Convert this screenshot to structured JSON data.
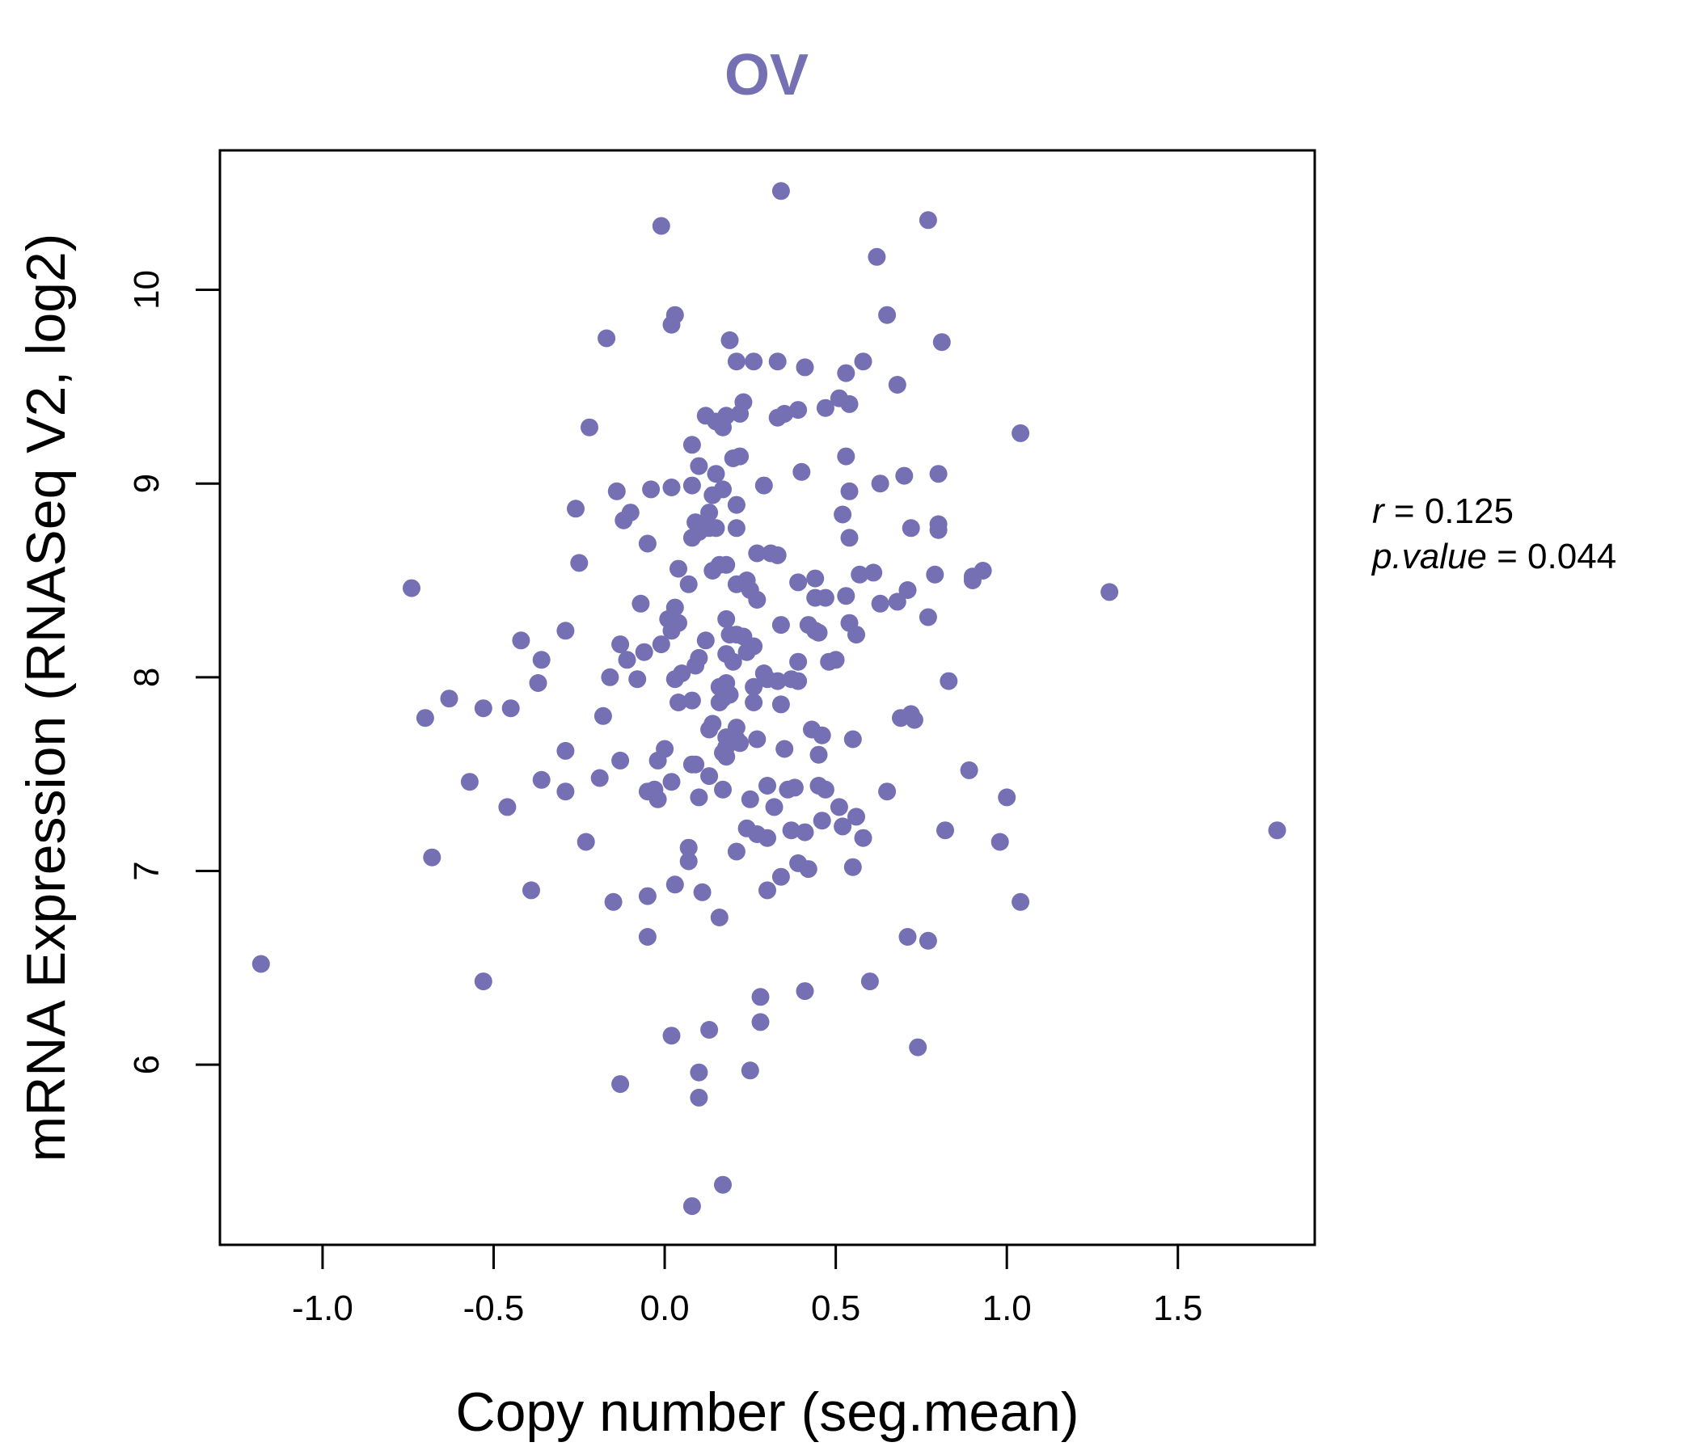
{
  "colors": {
    "accent": "#7570b3",
    "axis": "#000000",
    "background": "#ffffff"
  },
  "chart_data": {
    "type": "scatter",
    "title": "OV",
    "xlabel": "Copy number (seg.mean)",
    "ylabel": "mRNA Expression (RNASeq V2, log2)",
    "xlim": [
      -1.3,
      1.9
    ],
    "ylim": [
      5.07,
      10.72
    ],
    "x_ticks": [
      -1.0,
      -0.5,
      0.0,
      0.5,
      1.0,
      1.5
    ],
    "x_tick_labels": [
      "-1.0",
      "-0.5",
      "0.0",
      "0.5",
      "1.0",
      "1.5"
    ],
    "y_ticks": [
      6,
      7,
      8,
      9,
      10
    ],
    "y_tick_labels": [
      "6",
      "7",
      "8",
      "9",
      "10"
    ],
    "grid": false,
    "stats": {
      "r_symbol": "r",
      "r_eq": " = ",
      "r_value": "0.125",
      "p_symbol": "p.value",
      "p_eq": " = ",
      "p_value": "0.044"
    },
    "points": [
      [
        0.34,
        10.51
      ],
      [
        -0.01,
        10.33
      ],
      [
        0.77,
        10.36
      ],
      [
        0.62,
        10.17
      ],
      [
        0.03,
        9.87
      ],
      [
        0.65,
        9.87
      ],
      [
        0.02,
        9.82
      ],
      [
        -0.17,
        9.75
      ],
      [
        0.19,
        9.74
      ],
      [
        0.81,
        9.73
      ],
      [
        0.21,
        9.63
      ],
      [
        0.26,
        9.63
      ],
      [
        0.33,
        9.63
      ],
      [
        0.41,
        9.6
      ],
      [
        0.58,
        9.63
      ],
      [
        0.53,
        9.57
      ],
      [
        0.68,
        9.51
      ],
      [
        0.23,
        9.42
      ],
      [
        0.51,
        9.44
      ],
      [
        0.54,
        9.41
      ],
      [
        0.12,
        9.35
      ],
      [
        0.15,
        9.32
      ],
      [
        0.18,
        9.35
      ],
      [
        0.22,
        9.36
      ],
      [
        0.33,
        9.34
      ],
      [
        0.35,
        9.36
      ],
      [
        0.39,
        9.38
      ],
      [
        0.47,
        9.39
      ],
      [
        0.17,
        9.29
      ],
      [
        -0.22,
        9.29
      ],
      [
        1.04,
        9.26
      ],
      [
        0.08,
        9.2
      ],
      [
        0.2,
        9.13
      ],
      [
        0.22,
        9.14
      ],
      [
        0.53,
        9.14
      ],
      [
        0.1,
        9.09
      ],
      [
        0.15,
        9.05
      ],
      [
        0.4,
        9.06
      ],
      [
        0.7,
        9.04
      ],
      [
        0.8,
        9.05
      ],
      [
        0.02,
        8.98
      ],
      [
        0.08,
        8.99
      ],
      [
        0.17,
        8.97
      ],
      [
        0.29,
        8.99
      ],
      [
        0.63,
        9.0
      ],
      [
        0.54,
        8.96
      ],
      [
        -0.14,
        8.96
      ],
      [
        -0.04,
        8.97
      ],
      [
        0.14,
        8.94
      ],
      [
        0.21,
        8.89
      ],
      [
        0.13,
        8.85
      ],
      [
        -0.26,
        8.87
      ],
      [
        -0.1,
        8.85
      ],
      [
        -0.12,
        8.81
      ],
      [
        0.09,
        8.8
      ],
      [
        0.11,
        8.78
      ],
      [
        0.13,
        8.77
      ],
      [
        0.15,
        8.77
      ],
      [
        0.21,
        8.77
      ],
      [
        0.52,
        8.84
      ],
      [
        0.72,
        8.77
      ],
      [
        0.8,
        8.79
      ],
      [
        0.8,
        8.76
      ],
      [
        0.08,
        8.72
      ],
      [
        0.1,
        8.75
      ],
      [
        -0.05,
        8.69
      ],
      [
        0.54,
        8.72
      ],
      [
        0.27,
        8.64
      ],
      [
        0.31,
        8.64
      ],
      [
        0.33,
        8.63
      ],
      [
        -0.25,
        8.59
      ],
      [
        0.04,
        8.56
      ],
      [
        0.14,
        8.55
      ],
      [
        0.16,
        8.58
      ],
      [
        0.18,
        8.58
      ],
      [
        0.24,
        8.5
      ],
      [
        0.21,
        8.48
      ],
      [
        0.25,
        8.45
      ],
      [
        0.27,
        8.4
      ],
      [
        0.39,
        8.49
      ],
      [
        0.44,
        8.51
      ],
      [
        0.57,
        8.53
      ],
      [
        0.61,
        8.54
      ],
      [
        0.79,
        8.53
      ],
      [
        0.9,
        8.52
      ],
      [
        0.9,
        8.5
      ],
      [
        0.93,
        8.55
      ],
      [
        0.07,
        8.48
      ],
      [
        0.44,
        8.41
      ],
      [
        0.47,
        8.41
      ],
      [
        0.53,
        8.42
      ],
      [
        0.63,
        8.38
      ],
      [
        0.68,
        8.39
      ],
      [
        0.71,
        8.45
      ],
      [
        1.3,
        8.44
      ],
      [
        -0.74,
        8.46
      ],
      [
        -0.07,
        8.38
      ],
      [
        0.03,
        8.36
      ],
      [
        0.01,
        8.3
      ],
      [
        0.04,
        8.28
      ],
      [
        0.02,
        8.24
      ],
      [
        0.18,
        8.3
      ],
      [
        0.34,
        8.27
      ],
      [
        0.42,
        8.27
      ],
      [
        0.44,
        8.24
      ],
      [
        0.45,
        8.23
      ],
      [
        0.54,
        8.28
      ],
      [
        0.56,
        8.22
      ],
      [
        0.77,
        8.31
      ],
      [
        -0.29,
        8.24
      ],
      [
        -0.42,
        8.19
      ],
      [
        0.19,
        8.22
      ],
      [
        0.21,
        8.22
      ],
      [
        0.23,
        8.21
      ],
      [
        0.12,
        8.19
      ],
      [
        -0.01,
        8.17
      ],
      [
        -0.13,
        8.17
      ],
      [
        0.26,
        8.16
      ],
      [
        0.24,
        8.13
      ],
      [
        -0.06,
        8.13
      ],
      [
        -0.11,
        8.09
      ],
      [
        -0.36,
        8.09
      ],
      [
        0.1,
        8.1
      ],
      [
        0.18,
        8.12
      ],
      [
        0.2,
        8.08
      ],
      [
        0.39,
        8.08
      ],
      [
        0.48,
        8.08
      ],
      [
        0.5,
        8.09
      ],
      [
        0.09,
        8.06
      ],
      [
        0.05,
        8.02
      ],
      [
        0.03,
        7.99
      ],
      [
        0.29,
        8.02
      ],
      [
        0.3,
        7.99
      ],
      [
        0.33,
        7.98
      ],
      [
        0.37,
        7.99
      ],
      [
        0.39,
        7.98
      ],
      [
        0.18,
        7.97
      ],
      [
        0.16,
        7.95
      ],
      [
        -0.08,
        7.99
      ],
      [
        -0.16,
        8.0
      ],
      [
        -0.37,
        7.97
      ],
      [
        0.83,
        7.98
      ],
      [
        0.26,
        7.95
      ],
      [
        0.19,
        7.91
      ],
      [
        0.17,
        7.89
      ],
      [
        0.16,
        7.87
      ],
      [
        0.04,
        7.87
      ],
      [
        0.08,
        7.88
      ],
      [
        0.26,
        7.87
      ],
      [
        0.34,
        7.86
      ],
      [
        -0.63,
        7.89
      ],
      [
        -0.53,
        7.84
      ],
      [
        -0.45,
        7.84
      ],
      [
        -0.7,
        7.79
      ],
      [
        -0.18,
        7.8
      ],
      [
        0.14,
        7.76
      ],
      [
        0.13,
        7.73
      ],
      [
        0.21,
        7.74
      ],
      [
        0.18,
        7.69
      ],
      [
        0.21,
        7.68
      ],
      [
        0.22,
        7.66
      ],
      [
        0.18,
        7.64
      ],
      [
        0.17,
        7.61
      ],
      [
        0.18,
        7.59
      ],
      [
        0.27,
        7.68
      ],
      [
        0.43,
        7.73
      ],
      [
        0.46,
        7.7
      ],
      [
        0.55,
        7.68
      ],
      [
        0.69,
        7.79
      ],
      [
        0.72,
        7.81
      ],
      [
        0.73,
        7.78
      ],
      [
        0.35,
        7.63
      ],
      [
        0.45,
        7.6
      ],
      [
        -0.29,
        7.62
      ],
      [
        -0.13,
        7.57
      ],
      [
        0.0,
        7.63
      ],
      [
        -0.02,
        7.57
      ],
      [
        0.08,
        7.55
      ],
      [
        0.09,
        7.55
      ],
      [
        0.13,
        7.49
      ],
      [
        -0.19,
        7.48
      ],
      [
        -0.36,
        7.47
      ],
      [
        -0.57,
        7.46
      ],
      [
        0.89,
        7.52
      ],
      [
        0.02,
        7.46
      ],
      [
        0.17,
        7.42
      ],
      [
        0.3,
        7.44
      ],
      [
        0.36,
        7.42
      ],
      [
        0.38,
        7.43
      ],
      [
        0.45,
        7.44
      ],
      [
        0.47,
        7.42
      ],
      [
        0.65,
        7.41
      ],
      [
        -0.05,
        7.41
      ],
      [
        -0.03,
        7.42
      ],
      [
        -0.02,
        7.37
      ],
      [
        -0.29,
        7.41
      ],
      [
        0.1,
        7.38
      ],
      [
        0.25,
        7.37
      ],
      [
        0.32,
        7.33
      ],
      [
        0.51,
        7.33
      ],
      [
        0.56,
        7.28
      ],
      [
        0.52,
        7.23
      ],
      [
        0.46,
        7.26
      ],
      [
        1.0,
        7.38
      ],
      [
        -0.46,
        7.33
      ],
      [
        0.24,
        7.22
      ],
      [
        0.27,
        7.19
      ],
      [
        0.3,
        7.17
      ],
      [
        0.37,
        7.21
      ],
      [
        0.41,
        7.2
      ],
      [
        0.58,
        7.17
      ],
      [
        0.82,
        7.21
      ],
      [
        1.79,
        7.21
      ],
      [
        0.98,
        7.15
      ],
      [
        -0.23,
        7.15
      ],
      [
        0.07,
        7.12
      ],
      [
        0.21,
        7.1
      ],
      [
        0.07,
        7.05
      ],
      [
        0.39,
        7.04
      ],
      [
        0.42,
        7.01
      ],
      [
        0.55,
        7.02
      ],
      [
        0.34,
        6.97
      ],
      [
        -0.68,
        7.07
      ],
      [
        0.03,
        6.93
      ],
      [
        0.11,
        6.89
      ],
      [
        0.3,
        6.9
      ],
      [
        -0.39,
        6.9
      ],
      [
        -0.05,
        6.87
      ],
      [
        -0.15,
        6.84
      ],
      [
        1.04,
        6.84
      ],
      [
        0.16,
        6.76
      ],
      [
        -0.05,
        6.66
      ],
      [
        0.71,
        6.66
      ],
      [
        0.77,
        6.64
      ],
      [
        -1.18,
        6.52
      ],
      [
        -0.53,
        6.43
      ],
      [
        0.6,
        6.43
      ],
      [
        0.41,
        6.38
      ],
      [
        0.28,
        6.35
      ],
      [
        0.28,
        6.22
      ],
      [
        0.13,
        6.18
      ],
      [
        0.02,
        6.15
      ],
      [
        0.74,
        6.09
      ],
      [
        0.25,
        5.97
      ],
      [
        0.1,
        5.96
      ],
      [
        -0.13,
        5.9
      ],
      [
        0.1,
        5.83
      ],
      [
        0.17,
        5.38
      ],
      [
        0.08,
        5.27
      ]
    ]
  }
}
